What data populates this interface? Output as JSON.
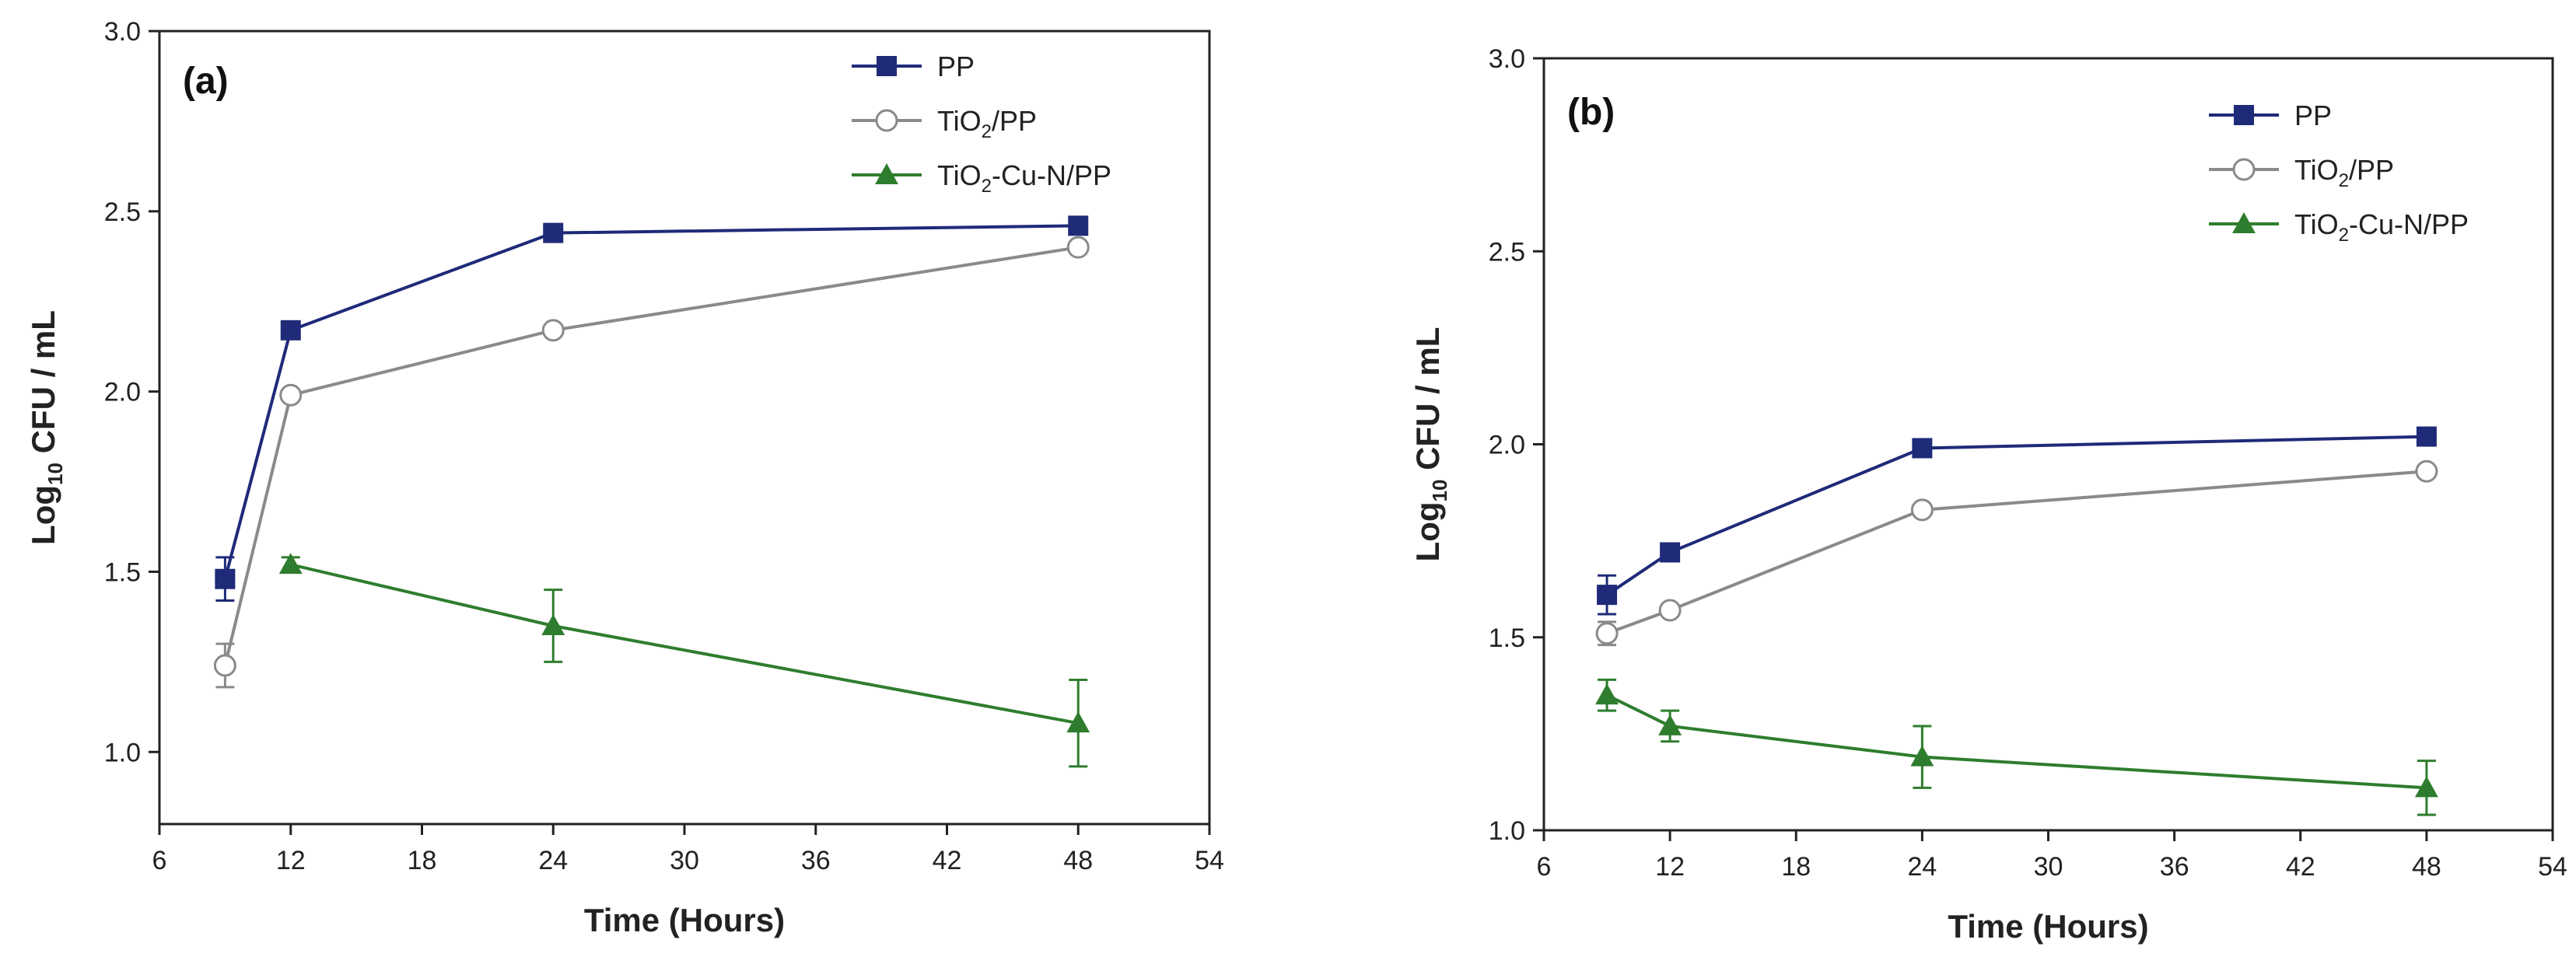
{
  "figure": {
    "description_free": true
  },
  "chart_data": [
    {
      "type": "line",
      "panel_label": "(a)",
      "xlabel": "Time (Hours)",
      "ylabel": {
        "prefix": "Log",
        "sub": "10",
        "suffix": " CFU / mL"
      },
      "xlim": [
        6,
        54
      ],
      "ylim": [
        0.8,
        3.0
      ],
      "xticks": [
        6,
        12,
        18,
        24,
        30,
        36,
        42,
        48,
        54
      ],
      "yticks": [
        1.0,
        1.5,
        2.0,
        2.5,
        3.0
      ],
      "legend_position": "top-right",
      "series": [
        {
          "name": "PP",
          "legend": {
            "prefix": "PP",
            "sub": "",
            "suffix": ""
          },
          "color": "#1f2a78",
          "marker": "square",
          "x": [
            9,
            12,
            24,
            48
          ],
          "y": [
            1.48,
            2.17,
            2.44,
            2.46
          ],
          "err": [
            0.06,
            0.0,
            0.0,
            0.0
          ]
        },
        {
          "name": "TiO2/PP",
          "legend": {
            "prefix": "TiO",
            "sub": "2",
            "suffix": "/PP"
          },
          "color": "#8a8a8a",
          "marker": "circle",
          "x": [
            9,
            12,
            24,
            48
          ],
          "y": [
            1.24,
            1.99,
            2.17,
            2.4
          ],
          "err": [
            0.06,
            0.0,
            0.0,
            0.0
          ]
        },
        {
          "name": "TiO2-Cu-N/PP",
          "legend": {
            "prefix": "TiO",
            "sub": "2",
            "suffix": "-Cu-N/PP"
          },
          "color": "#2e7d2e",
          "marker": "triangle",
          "x": [
            12,
            24,
            48
          ],
          "y": [
            1.52,
            1.35,
            1.08
          ],
          "err": [
            0.02,
            0.1,
            0.12
          ]
        }
      ]
    },
    {
      "type": "line",
      "panel_label": "(b)",
      "xlabel": "Time (Hours)",
      "ylabel": {
        "prefix": "Log",
        "sub": "10",
        "suffix": " CFU / mL"
      },
      "xlim": [
        6,
        54
      ],
      "ylim": [
        1.0,
        3.0
      ],
      "xticks": [
        6,
        12,
        18,
        24,
        30,
        36,
        42,
        48,
        54
      ],
      "yticks": [
        1.0,
        1.5,
        2.0,
        2.5,
        3.0
      ],
      "legend_position": "top-right",
      "series": [
        {
          "name": "PP",
          "legend": {
            "prefix": "PP",
            "sub": "",
            "suffix": ""
          },
          "color": "#1f2a78",
          "marker": "square",
          "x": [
            9,
            12,
            24,
            48
          ],
          "y": [
            1.61,
            1.72,
            1.99,
            2.02
          ],
          "err": [
            0.05,
            0.02,
            0.0,
            0.0
          ]
        },
        {
          "name": "TiO2/PP",
          "legend": {
            "prefix": "TiO",
            "sub": "2",
            "suffix": "/PP"
          },
          "color": "#8a8a8a",
          "marker": "circle",
          "x": [
            9,
            12,
            24,
            48
          ],
          "y": [
            1.51,
            1.57,
            1.83,
            1.93
          ],
          "err": [
            0.03,
            0.0,
            0.0,
            0.0
          ]
        },
        {
          "name": "TiO2-Cu-N/PP",
          "legend": {
            "prefix": "TiO",
            "sub": "2",
            "suffix": "-Cu-N/PP"
          },
          "color": "#2e7d2e",
          "marker": "triangle",
          "x": [
            9,
            12,
            24,
            48
          ],
          "y": [
            1.35,
            1.27,
            1.19,
            1.11
          ],
          "err": [
            0.04,
            0.04,
            0.08,
            0.07
          ]
        }
      ]
    }
  ]
}
